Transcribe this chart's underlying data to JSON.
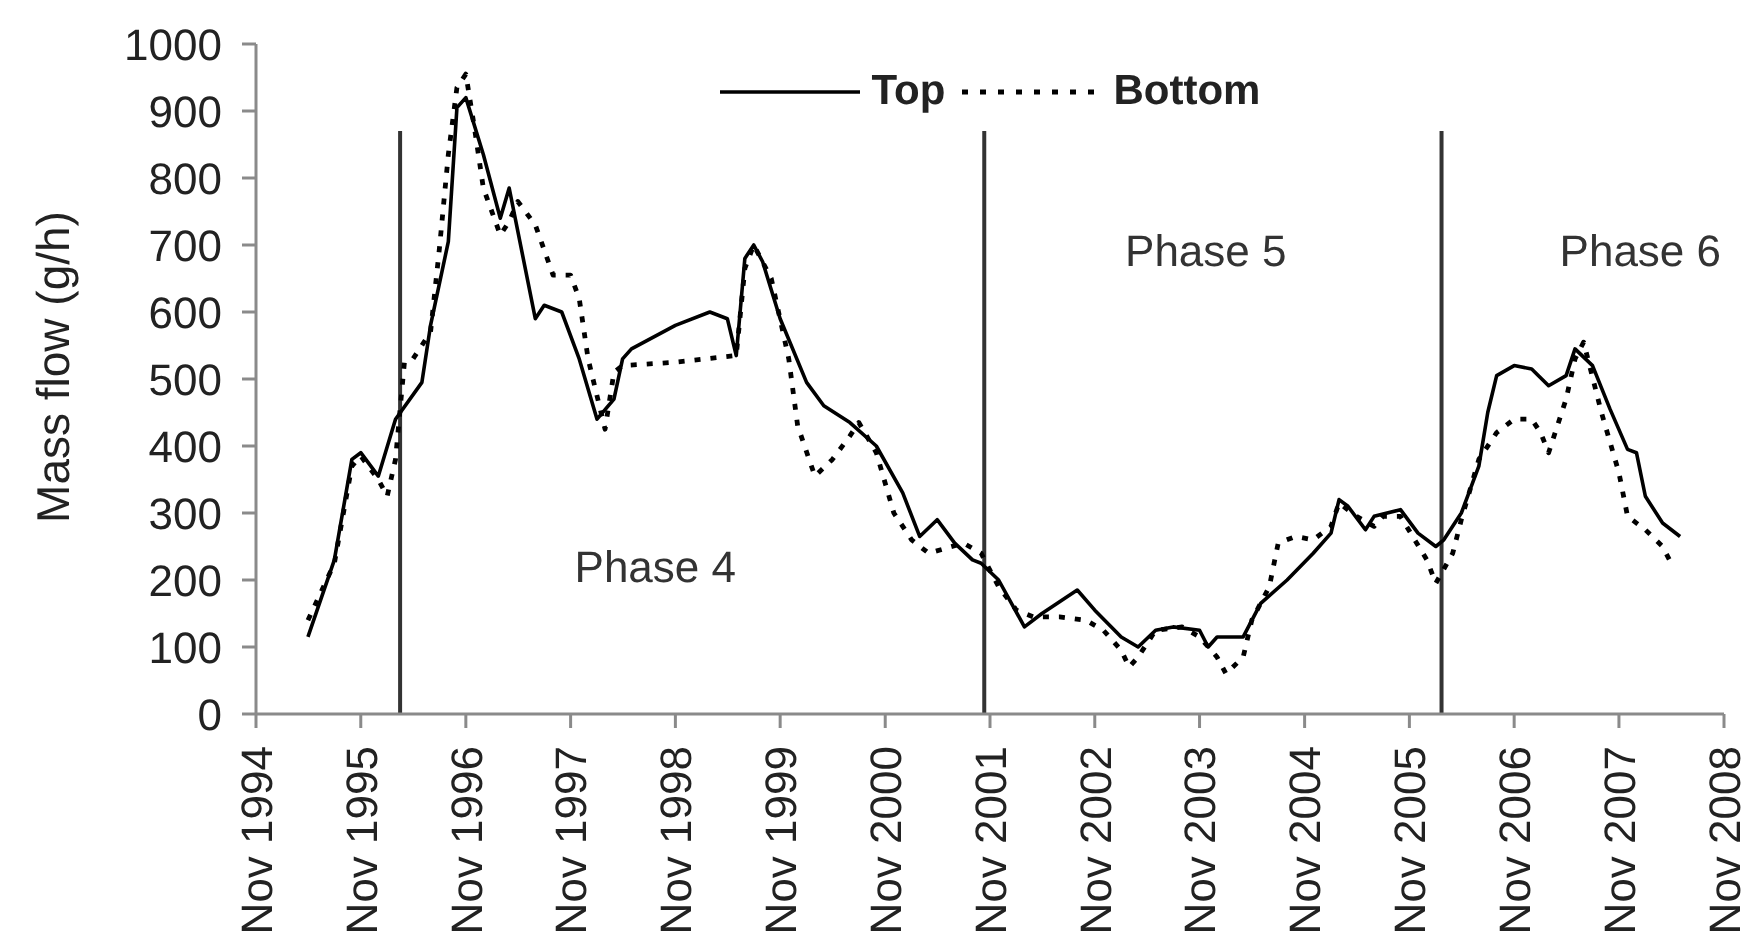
{
  "chart_data": {
    "type": "line",
    "ylabel": "Mass flow (g/h)",
    "xlim": [
      "1994-11",
      "2008-11"
    ],
    "xticks": [
      {
        "value": "1994-11",
        "label": "Nov 1994"
      },
      {
        "value": "1995-11",
        "label": "Nov 1995"
      },
      {
        "value": "1996-11",
        "label": "Nov 1996"
      },
      {
        "value": "1997-11",
        "label": "Nov 1997"
      },
      {
        "value": "1998-11",
        "label": "Nov 1998"
      },
      {
        "value": "1999-11",
        "label": "Nov 1999"
      },
      {
        "value": "2000-11",
        "label": "Nov 2000"
      },
      {
        "value": "2001-11",
        "label": "Nov 2001"
      },
      {
        "value": "2002-11",
        "label": "Nov 2002"
      },
      {
        "value": "2003-11",
        "label": "Nov 2003"
      },
      {
        "value": "2004-11",
        "label": "Nov 2004"
      },
      {
        "value": "2005-11",
        "label": "Nov 2005"
      },
      {
        "value": "2006-11",
        "label": "Nov 2006"
      },
      {
        "value": "2007-11",
        "label": "Nov 2007"
      },
      {
        "value": "2008-11",
        "label": "Nov 2008"
      }
    ],
    "ylim": [
      0,
      1000
    ],
    "yticks": [
      0,
      100,
      200,
      300,
      400,
      500,
      600,
      700,
      800,
      900,
      1000
    ],
    "legend": "top",
    "marker": "none",
    "series": [
      {
        "name": "Top",
        "color": "#000000",
        "line_style": "solid",
        "x": [
          "1995-05",
          "1995-08",
          "1995-10",
          "1995-11",
          "1996-01",
          "1996-03",
          "1996-06",
          "1996-07",
          "1996-09",
          "1996-10",
          "1996-11",
          "1997-01",
          "1997-03",
          "1997-04",
          "1997-07",
          "1997-08",
          "1997-10",
          "1997-12",
          "1998-02",
          "1998-04",
          "1998-05",
          "1998-06",
          "1998-11",
          "1999-03",
          "1999-05",
          "1999-06",
          "1999-07",
          "1999-08",
          "1999-09",
          "1999-11",
          "2000-02",
          "2000-04",
          "2000-07",
          "2000-10",
          "2001-01",
          "2001-03",
          "2001-05",
          "2001-07",
          "2001-09",
          "2001-10",
          "2001-12",
          "2002-03",
          "2002-05",
          "2002-09",
          "2002-11",
          "2003-02",
          "2003-04",
          "2003-06",
          "2003-08",
          "2003-11",
          "2003-12",
          "2004-01",
          "2004-04",
          "2004-06",
          "2004-09",
          "2004-12",
          "2005-02",
          "2005-03",
          "2005-04",
          "2005-06",
          "2005-07",
          "2005-10",
          "2005-12",
          "2006-02",
          "2006-03",
          "2006-05",
          "2006-07",
          "2006-08",
          "2006-09",
          "2006-11",
          "2007-01",
          "2007-03",
          "2007-05",
          "2007-06",
          "2007-08",
          "2007-10",
          "2007-12",
          "2008-01",
          "2008-02",
          "2008-04",
          "2008-06"
        ],
        "values": [
          115,
          230,
          380,
          390,
          355,
          440,
          495,
          580,
          705,
          905,
          920,
          835,
          740,
          785,
          590,
          610,
          600,
          530,
          440,
          470,
          530,
          545,
          580,
          600,
          590,
          535,
          680,
          700,
          675,
          590,
          495,
          460,
          435,
          400,
          330,
          265,
          290,
          255,
          230,
          225,
          200,
          130,
          150,
          185,
          155,
          115,
          100,
          125,
          130,
          125,
          100,
          115,
          115,
          165,
          200,
          240,
          270,
          320,
          310,
          275,
          295,
          305,
          270,
          250,
          260,
          300,
          370,
          450,
          505,
          520,
          515,
          490,
          505,
          545,
          520,
          455,
          395,
          390,
          325,
          285,
          265
        ]
      },
      {
        "name": "Bottom",
        "color": "#000000",
        "line_style": "dotted",
        "x": [
          "1995-05",
          "1995-08",
          "1995-10",
          "1995-11",
          "1996-01",
          "1996-02",
          "1996-03",
          "1996-04",
          "1996-05",
          "1996-07",
          "1996-08",
          "1996-09",
          "1996-10",
          "1996-11",
          "1996-12",
          "1997-01",
          "1997-03",
          "1997-04",
          "1997-05",
          "1997-07",
          "1997-09",
          "1997-11",
          "1997-12",
          "1998-01",
          "1998-03",
          "1998-04",
          "1998-05",
          "1998-11",
          "1999-06",
          "1999-07",
          "1999-08",
          "1999-10",
          "1999-12",
          "2000-01",
          "2000-03",
          "2000-05",
          "2000-07",
          "2000-08",
          "2000-10",
          "2000-12",
          "2001-02",
          "2001-04",
          "2001-08",
          "2001-10",
          "2001-12",
          "2002-02",
          "2002-04",
          "2002-07",
          "2002-10",
          "2002-12",
          "2003-02",
          "2003-03",
          "2003-04",
          "2003-06",
          "2003-09",
          "2003-11",
          "2004-01",
          "2004-02",
          "2004-04",
          "2004-05",
          "2004-07",
          "2004-08",
          "2004-10",
          "2004-12",
          "2005-02",
          "2005-03",
          "2005-05",
          "2005-07",
          "2005-08",
          "2005-10",
          "2006-01",
          "2006-02",
          "2006-04",
          "2006-05",
          "2006-07",
          "2006-09",
          "2006-11",
          "2007-01",
          "2007-02",
          "2007-03",
          "2007-05",
          "2007-06",
          "2007-07",
          "2007-09",
          "2007-11",
          "2007-12",
          "2008-02",
          "2008-04",
          "2008-05"
        ],
        "values": [
          140,
          225,
          370,
          385,
          350,
          325,
          380,
          525,
          530,
          570,
          695,
          835,
          935,
          955,
          875,
          785,
          715,
          735,
          765,
          730,
          655,
          655,
          620,
          530,
          425,
          510,
          520,
          525,
          535,
          665,
          700,
          650,
          530,
          430,
          355,
          380,
          415,
          435,
          390,
          300,
          260,
          240,
          255,
          240,
          190,
          155,
          145,
          145,
          140,
          125,
          95,
          70,
          85,
          125,
          130,
          115,
          85,
          60,
          85,
          140,
          190,
          255,
          265,
          260,
          280,
          315,
          295,
          280,
          295,
          295,
          230,
          195,
          240,
          290,
          380,
          420,
          440,
          440,
          420,
          390,
          470,
          530,
          555,
          450,
          360,
          295,
          275,
          250,
          225
        ]
      }
    ],
    "ref_lines": [
      {
        "axis": "x",
        "value": "1996-03-17",
        "color": "#333333"
      },
      {
        "axis": "x",
        "value": "2001-10-12",
        "color": "#333333"
      },
      {
        "axis": "x",
        "value": "2006-02-21",
        "color": "#333333"
      }
    ],
    "annotations": [
      "Phase 4",
      "Phase 5",
      "Phase 6"
    ]
  }
}
